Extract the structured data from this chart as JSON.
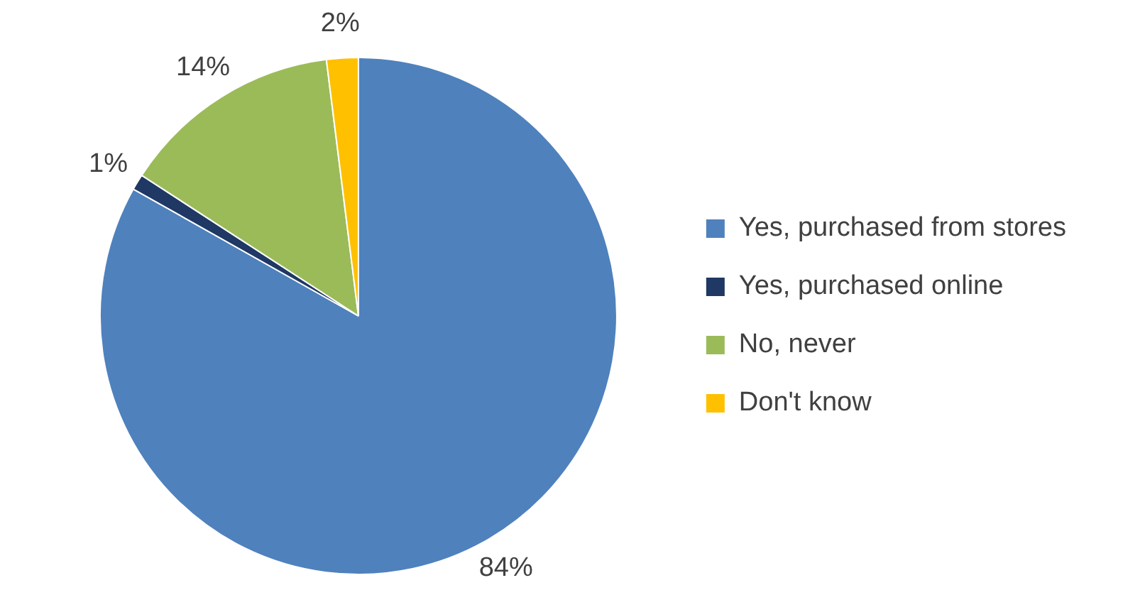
{
  "chart_data": {
    "type": "pie",
    "categories": [
      "Yes, purchased from stores",
      "Yes, purchased online",
      "No, never",
      "Don't know"
    ],
    "values": [
      84,
      1,
      14,
      2
    ],
    "colors": [
      "#4f81bd",
      "#1f3864",
      "#9bbb59",
      "#ffc000"
    ],
    "value_labels": [
      "84%",
      "1%",
      "14%",
      "2%"
    ],
    "legend": "right"
  }
}
